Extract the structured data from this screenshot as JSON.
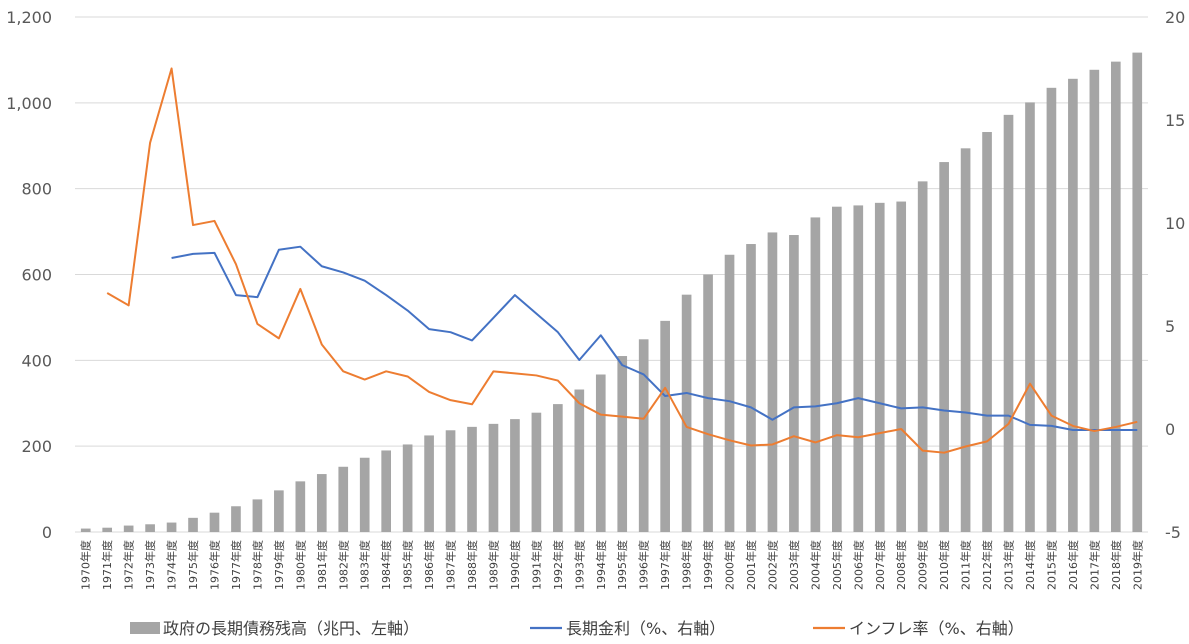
{
  "chart_data": {
    "type": "bar",
    "categories": [
      "1970年度",
      "1971年度",
      "1972年度",
      "1973年度",
      "1974年度",
      "1975年度",
      "1976年度",
      "1977年度",
      "1978年度",
      "1979年度",
      "1980年度",
      "1981年度",
      "1982年度",
      "1983年度",
      "1984年度",
      "1985年度",
      "1986年度",
      "1987年度",
      "1988年度",
      "1989年度",
      "1990年度",
      "1991年度",
      "1992年度",
      "1993年度",
      "1994年度",
      "1995年度",
      "1996年度",
      "1997年度",
      "1998年度",
      "1999年度",
      "2000年度",
      "2001年度",
      "2002年度",
      "2003年度",
      "2004年度",
      "2005年度",
      "2006年度",
      "2007年度",
      "2008年度",
      "2009年度",
      "2010年度",
      "2011年度",
      "2012年度",
      "2013年度",
      "2014年度",
      "2015年度",
      "2016年度",
      "2017年度",
      "2018年度",
      "2019年度"
    ],
    "left_axis": {
      "ylim": [
        0,
        1200
      ],
      "ticks": [
        0,
        200,
        400,
        600,
        800,
        1000,
        1200
      ],
      "tick_labels": [
        "0",
        "200",
        "400",
        "600",
        "800",
        "1,000",
        "1,200"
      ]
    },
    "right_axis": {
      "ylim": [
        -5,
        20
      ],
      "ticks": [
        -5,
        0,
        5,
        10,
        15,
        20
      ],
      "tick_labels": [
        "-5",
        "0",
        "5",
        "10",
        "15",
        "20"
      ]
    },
    "grid": true,
    "legend_position": "bottom",
    "series": [
      {
        "name": "政府の長期債務残高（兆円、左軸）",
        "kind": "bar",
        "axis": "left",
        "color": "#a5a5a5",
        "values": [
          8,
          10,
          15,
          18,
          22,
          33,
          45,
          60,
          76,
          97,
          118,
          135,
          152,
          173,
          190,
          204,
          225,
          237,
          245,
          252,
          263,
          278,
          298,
          332,
          367,
          410,
          449,
          492,
          553,
          600,
          646,
          671,
          698,
          692,
          733,
          758,
          761,
          767,
          770,
          817,
          862,
          894,
          932,
          972,
          1001,
          1035,
          1056,
          1077,
          1096,
          1117
        ]
      },
      {
        "name": "長期金利（%、右軸）",
        "kind": "line",
        "axis": "right",
        "color": "#4472c4",
        "values": [
          null,
          null,
          null,
          null,
          8.3,
          8.5,
          8.55,
          6.5,
          6.4,
          8.7,
          8.85,
          7.9,
          7.6,
          7.2,
          6.5,
          5.75,
          4.85,
          4.7,
          4.3,
          5.4,
          6.5,
          5.6,
          4.7,
          3.35,
          4.55,
          3.1,
          2.65,
          1.6,
          1.75,
          1.5,
          1.35,
          1.05,
          0.45,
          1.05,
          1.1,
          1.25,
          1.5,
          1.25,
          1.0,
          1.05,
          0.9,
          0.8,
          0.65,
          0.65,
          0.2,
          0.15,
          -0.05,
          -0.05,
          -0.05,
          -0.05
        ]
      },
      {
        "name": "インフレ率（%、右軸）",
        "kind": "line",
        "axis": "right",
        "color": "#ed7d31",
        "values": [
          null,
          6.6,
          6.0,
          13.9,
          17.5,
          9.9,
          10.1,
          8.0,
          5.1,
          4.4,
          6.8,
          4.1,
          2.8,
          2.4,
          2.8,
          2.55,
          1.8,
          1.4,
          1.2,
          2.8,
          2.7,
          2.6,
          2.35,
          1.25,
          0.7,
          0.6,
          0.5,
          2.0,
          0.1,
          -0.25,
          -0.55,
          -0.8,
          -0.75,
          -0.35,
          -0.65,
          -0.3,
          -0.4,
          -0.2,
          0.0,
          -1.05,
          -1.15,
          -0.85,
          -0.6,
          0.25,
          2.2,
          0.65,
          0.15,
          -0.1,
          0.1,
          0.35
        ]
      }
    ]
  }
}
